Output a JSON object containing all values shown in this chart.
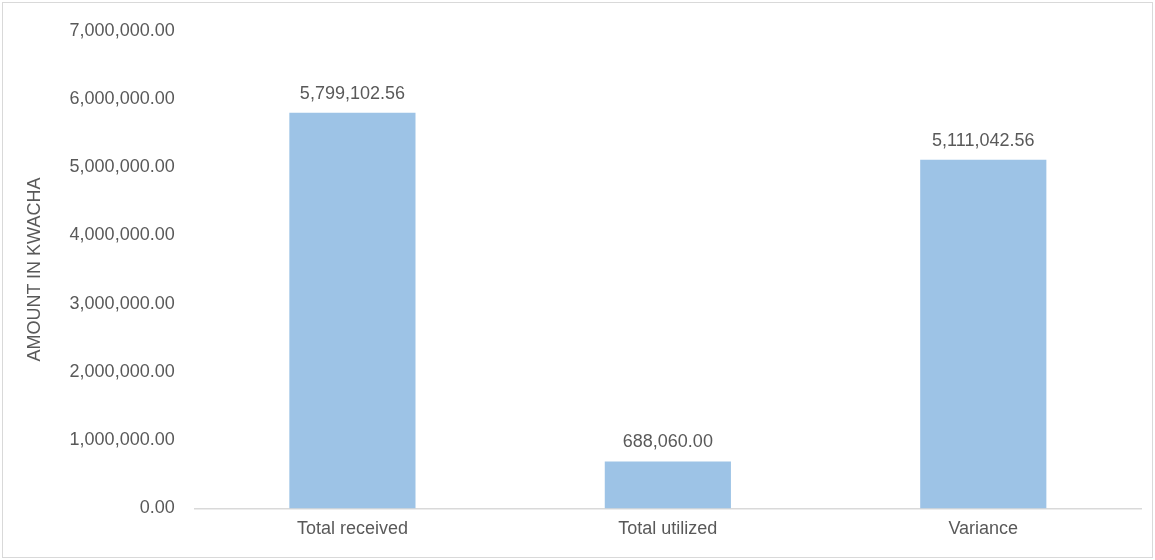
{
  "chart_data": {
    "type": "bar",
    "ylabel": "AMOUNT IN KWACHA",
    "categories": [
      "Total received",
      "Total utilized",
      "Variance"
    ],
    "values": [
      5799102.56,
      688060,
      5111042.56
    ],
    "value_labels": [
      "5,799,102.56",
      "688,060.00",
      "5,111,042.56"
    ],
    "color": "#9dc3e6",
    "grid": false,
    "legend": false,
    "ylim": [
      0,
      7000000
    ],
    "yticks": [
      {
        "value": 0,
        "label": "0.00"
      },
      {
        "value": 1000000,
        "label": "1,000,000.00"
      },
      {
        "value": 2000000,
        "label": "2,000,000.00"
      },
      {
        "value": 3000000,
        "label": "3,000,000.00"
      },
      {
        "value": 4000000,
        "label": "4,000,000.00"
      },
      {
        "value": 5000000,
        "label": "5,000,000.00"
      },
      {
        "value": 6000000,
        "label": "6,000,000.00"
      },
      {
        "value": 7000000,
        "label": "7,000,000.00"
      }
    ]
  }
}
